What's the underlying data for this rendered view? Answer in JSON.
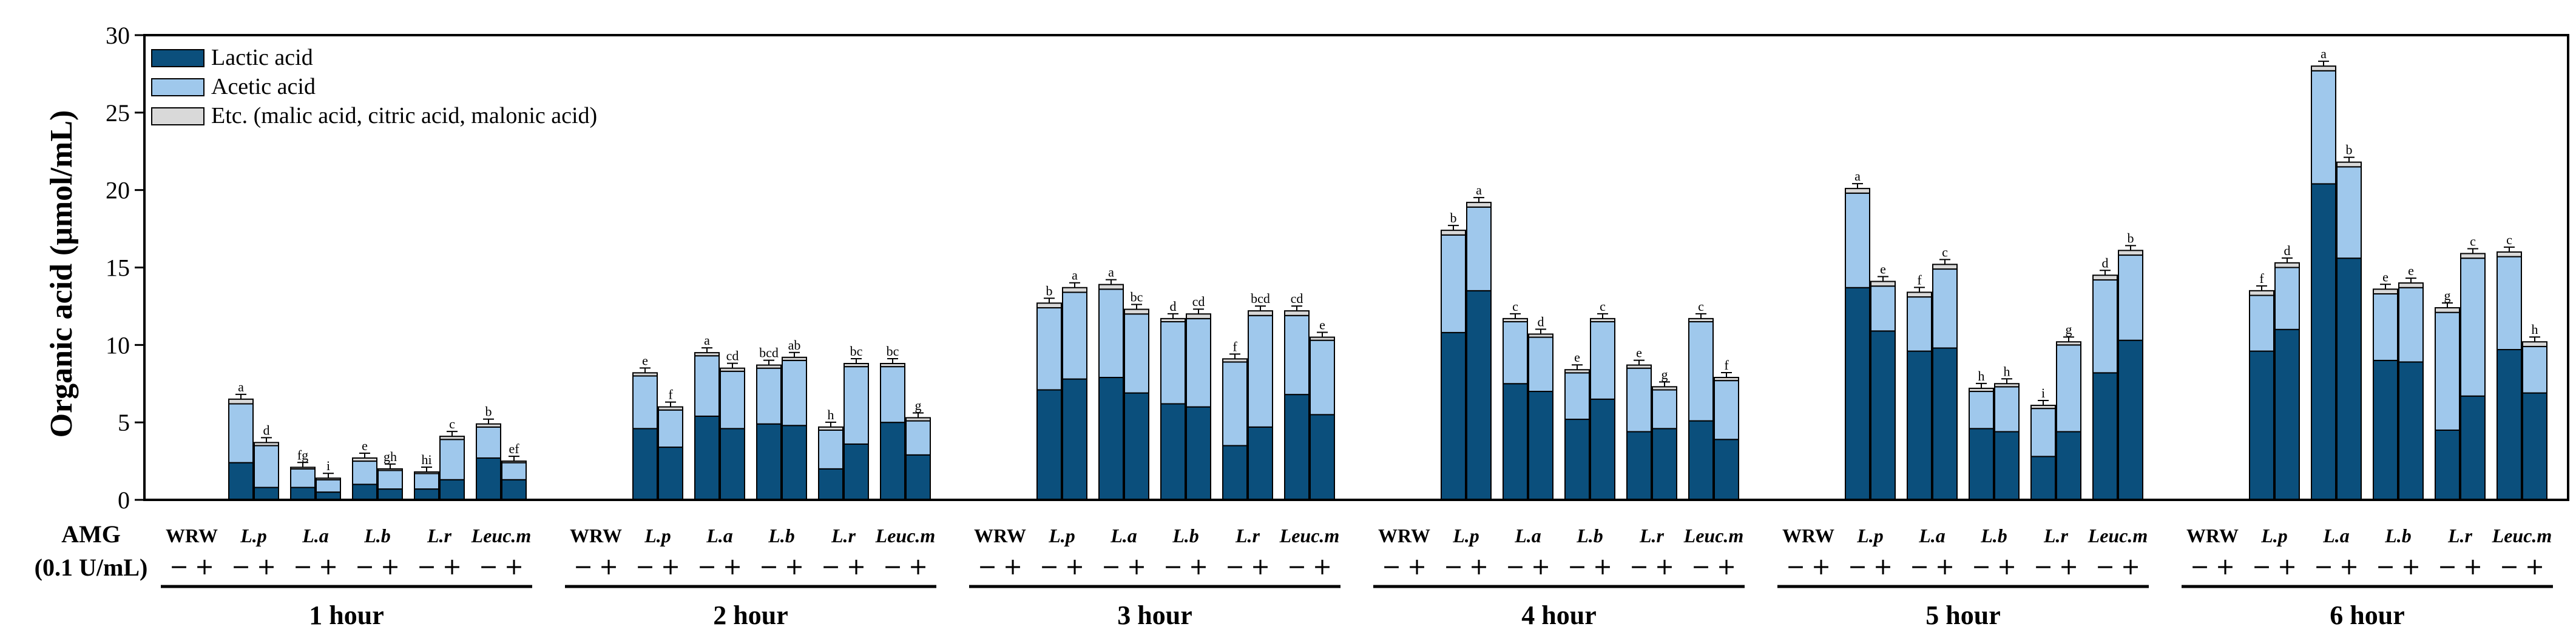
{
  "chart_data": {
    "type": "bar",
    "stacked": true,
    "ylabel": "Organic acid (μmol/mL)",
    "ylim": [
      0,
      30
    ],
    "yticks": [
      0,
      5,
      10,
      15,
      20,
      25,
      30
    ],
    "legend_position": "top-left",
    "colors": {
      "lactic": "#0b4f7c",
      "acetic": "#9fc8ec",
      "etc": "#d9d9d9",
      "frame": "#000000"
    },
    "series_names": [
      "Lactic acid",
      "Acetic acid",
      "Etc. (malic acid, citric acid, malonic acid)"
    ],
    "x_row_labels": {
      "amg": "AMG",
      "amg_unit": "(0.1 U/mL)",
      "minus": "−",
      "plus": "+"
    },
    "strains": [
      {
        "label": "WRW",
        "italic": false
      },
      {
        "label": "L.p",
        "italic": true
      },
      {
        "label": "L.a",
        "italic": true
      },
      {
        "label": "L.b",
        "italic": true
      },
      {
        "label": "L.r",
        "italic": true
      },
      {
        "label": "Leuc.m",
        "italic": true
      }
    ],
    "time_groups": [
      {
        "label": "1 hour",
        "bars": [
          {
            "lactic": 0.0,
            "acetic": 0.0,
            "etc": 0.0,
            "sig": ""
          },
          {
            "lactic": 0.0,
            "acetic": 0.0,
            "etc": 0.0,
            "sig": ""
          },
          {
            "lactic": 2.4,
            "acetic": 3.8,
            "etc": 0.3,
            "sig": "a"
          },
          {
            "lactic": 0.8,
            "acetic": 2.7,
            "etc": 0.2,
            "sig": "d"
          },
          {
            "lactic": 0.8,
            "acetic": 1.2,
            "etc": 0.1,
            "sig": "fg"
          },
          {
            "lactic": 0.5,
            "acetic": 0.8,
            "etc": 0.1,
            "sig": "i"
          },
          {
            "lactic": 1.0,
            "acetic": 1.5,
            "etc": 0.2,
            "sig": "e"
          },
          {
            "lactic": 0.7,
            "acetic": 1.2,
            "etc": 0.1,
            "sig": "gh"
          },
          {
            "lactic": 0.7,
            "acetic": 1.0,
            "etc": 0.1,
            "sig": "hi"
          },
          {
            "lactic": 1.3,
            "acetic": 2.6,
            "etc": 0.2,
            "sig": "c"
          },
          {
            "lactic": 2.7,
            "acetic": 2.0,
            "etc": 0.2,
            "sig": "b"
          },
          {
            "lactic": 1.3,
            "acetic": 1.1,
            "etc": 0.1,
            "sig": "ef"
          }
        ]
      },
      {
        "label": "2 hour",
        "bars": [
          {
            "lactic": 0.0,
            "acetic": 0.0,
            "etc": 0.0,
            "sig": ""
          },
          {
            "lactic": 0.0,
            "acetic": 0.0,
            "etc": 0.0,
            "sig": ""
          },
          {
            "lactic": 4.6,
            "acetic": 3.4,
            "etc": 0.2,
            "sig": "e"
          },
          {
            "lactic": 3.4,
            "acetic": 2.4,
            "etc": 0.2,
            "sig": "f"
          },
          {
            "lactic": 5.4,
            "acetic": 3.9,
            "etc": 0.2,
            "sig": "a"
          },
          {
            "lactic": 4.6,
            "acetic": 3.7,
            "etc": 0.2,
            "sig": "cd"
          },
          {
            "lactic": 4.9,
            "acetic": 3.6,
            "etc": 0.2,
            "sig": "bcd"
          },
          {
            "lactic": 4.8,
            "acetic": 4.2,
            "etc": 0.2,
            "sig": "ab"
          },
          {
            "lactic": 2.0,
            "acetic": 2.5,
            "etc": 0.2,
            "sig": "h"
          },
          {
            "lactic": 3.6,
            "acetic": 5.0,
            "etc": 0.2,
            "sig": "bc"
          },
          {
            "lactic": 5.0,
            "acetic": 3.6,
            "etc": 0.2,
            "sig": "bc"
          },
          {
            "lactic": 2.9,
            "acetic": 2.2,
            "etc": 0.2,
            "sig": "g"
          }
        ]
      },
      {
        "label": "3 hour",
        "bars": [
          {
            "lactic": 0.0,
            "acetic": 0.0,
            "etc": 0.0,
            "sig": ""
          },
          {
            "lactic": 0.0,
            "acetic": 0.0,
            "etc": 0.0,
            "sig": ""
          },
          {
            "lactic": 7.1,
            "acetic": 5.3,
            "etc": 0.3,
            "sig": "b"
          },
          {
            "lactic": 7.8,
            "acetic": 5.6,
            "etc": 0.3,
            "sig": "a"
          },
          {
            "lactic": 7.9,
            "acetic": 5.7,
            "etc": 0.3,
            "sig": "a"
          },
          {
            "lactic": 6.9,
            "acetic": 5.1,
            "etc": 0.3,
            "sig": "bc"
          },
          {
            "lactic": 6.2,
            "acetic": 5.3,
            "etc": 0.2,
            "sig": "d"
          },
          {
            "lactic": 6.0,
            "acetic": 5.7,
            "etc": 0.3,
            "sig": "cd"
          },
          {
            "lactic": 3.5,
            "acetic": 5.4,
            "etc": 0.2,
            "sig": "f"
          },
          {
            "lactic": 4.7,
            "acetic": 7.2,
            "etc": 0.3,
            "sig": "bcd"
          },
          {
            "lactic": 6.8,
            "acetic": 5.1,
            "etc": 0.3,
            "sig": "cd"
          },
          {
            "lactic": 5.5,
            "acetic": 4.8,
            "etc": 0.2,
            "sig": "e"
          }
        ]
      },
      {
        "label": "4 hour",
        "bars": [
          {
            "lactic": 0.0,
            "acetic": 0.0,
            "etc": 0.0,
            "sig": ""
          },
          {
            "lactic": 0.0,
            "acetic": 0.0,
            "etc": 0.0,
            "sig": ""
          },
          {
            "lactic": 10.8,
            "acetic": 6.3,
            "etc": 0.3,
            "sig": "b"
          },
          {
            "lactic": 13.5,
            "acetic": 5.4,
            "etc": 0.3,
            "sig": "a"
          },
          {
            "lactic": 7.5,
            "acetic": 4.0,
            "etc": 0.2,
            "sig": "c"
          },
          {
            "lactic": 7.0,
            "acetic": 3.5,
            "etc": 0.2,
            "sig": "d"
          },
          {
            "lactic": 5.2,
            "acetic": 3.0,
            "etc": 0.2,
            "sig": "e"
          },
          {
            "lactic": 6.5,
            "acetic": 5.0,
            "etc": 0.2,
            "sig": "c"
          },
          {
            "lactic": 4.4,
            "acetic": 4.1,
            "etc": 0.2,
            "sig": "e"
          },
          {
            "lactic": 4.6,
            "acetic": 2.5,
            "etc": 0.2,
            "sig": "g"
          },
          {
            "lactic": 5.1,
            "acetic": 6.4,
            "etc": 0.2,
            "sig": "c"
          },
          {
            "lactic": 3.9,
            "acetic": 3.8,
            "etc": 0.2,
            "sig": "f"
          }
        ]
      },
      {
        "label": "5 hour",
        "bars": [
          {
            "lactic": 0.0,
            "acetic": 0.0,
            "etc": 0.0,
            "sig": ""
          },
          {
            "lactic": 0.0,
            "acetic": 0.0,
            "etc": 0.0,
            "sig": ""
          },
          {
            "lactic": 13.7,
            "acetic": 6.1,
            "etc": 0.3,
            "sig": "a"
          },
          {
            "lactic": 10.9,
            "acetic": 2.9,
            "etc": 0.3,
            "sig": "e"
          },
          {
            "lactic": 9.6,
            "acetic": 3.5,
            "etc": 0.3,
            "sig": "f"
          },
          {
            "lactic": 9.8,
            "acetic": 5.1,
            "etc": 0.3,
            "sig": "c"
          },
          {
            "lactic": 4.6,
            "acetic": 2.4,
            "etc": 0.2,
            "sig": "h"
          },
          {
            "lactic": 4.4,
            "acetic": 2.9,
            "etc": 0.2,
            "sig": "h"
          },
          {
            "lactic": 2.8,
            "acetic": 3.1,
            "etc": 0.2,
            "sig": "i"
          },
          {
            "lactic": 4.4,
            "acetic": 5.6,
            "etc": 0.2,
            "sig": "g"
          },
          {
            "lactic": 8.2,
            "acetic": 6.0,
            "etc": 0.3,
            "sig": "d"
          },
          {
            "lactic": 10.3,
            "acetic": 5.5,
            "etc": 0.3,
            "sig": "b"
          }
        ]
      },
      {
        "label": "6 hour",
        "bars": [
          {
            "lactic": 0.0,
            "acetic": 0.0,
            "etc": 0.0,
            "sig": ""
          },
          {
            "lactic": 0.0,
            "acetic": 0.0,
            "etc": 0.0,
            "sig": ""
          },
          {
            "lactic": 9.6,
            "acetic": 3.6,
            "etc": 0.3,
            "sig": "f"
          },
          {
            "lactic": 11.0,
            "acetic": 4.0,
            "etc": 0.3,
            "sig": "d"
          },
          {
            "lactic": 20.4,
            "acetic": 7.3,
            "etc": 0.3,
            "sig": "a"
          },
          {
            "lactic": 15.6,
            "acetic": 5.9,
            "etc": 0.3,
            "sig": "b"
          },
          {
            "lactic": 9.0,
            "acetic": 4.3,
            "etc": 0.3,
            "sig": "e"
          },
          {
            "lactic": 8.9,
            "acetic": 4.8,
            "etc": 0.3,
            "sig": "e"
          },
          {
            "lactic": 4.5,
            "acetic": 7.6,
            "etc": 0.3,
            "sig": "g"
          },
          {
            "lactic": 6.7,
            "acetic": 8.9,
            "etc": 0.3,
            "sig": "c"
          },
          {
            "lactic": 9.7,
            "acetic": 6.0,
            "etc": 0.3,
            "sig": "c"
          },
          {
            "lactic": 6.9,
            "acetic": 3.0,
            "etc": 0.3,
            "sig": "h"
          }
        ]
      }
    ]
  }
}
